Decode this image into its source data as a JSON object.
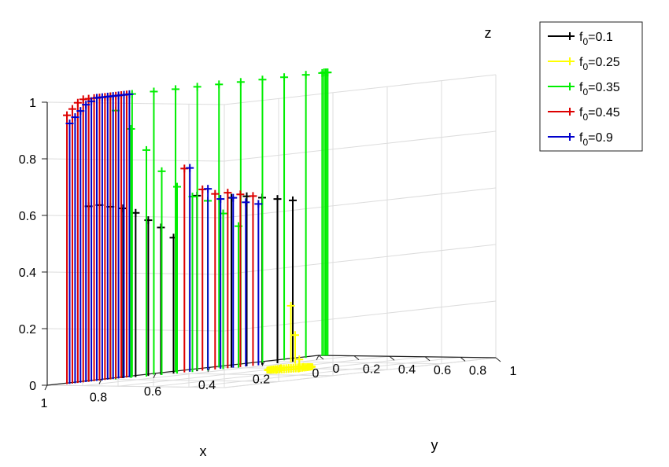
{
  "chart_data": {
    "type": "line",
    "kind": "3d-stem-plot",
    "title": "",
    "axes": {
      "x": {
        "label": "x",
        "ticks": [
          "1",
          "0.8",
          "0.6",
          "0.4",
          "0.2",
          "0"
        ]
      },
      "y": {
        "label": "y",
        "ticks": [
          "1",
          "0.8",
          "0.6",
          "0.4",
          "0.2",
          "0"
        ]
      },
      "z": {
        "label": "z",
        "ticks": [
          "0",
          "0.2",
          "0.4",
          "0.6",
          "0.8",
          "1"
        ]
      }
    },
    "xlim": [
      0,
      1
    ],
    "ylim": [
      0,
      1
    ],
    "zlim": [
      0,
      1
    ],
    "grid": true,
    "legend_position": "top-right",
    "marker": "+",
    "legend": {
      "entries": [
        {
          "prefix": "f",
          "subscript": "0",
          "suffix": "=0.1"
        },
        {
          "prefix": "f",
          "subscript": "0",
          "suffix": "=0.25"
        },
        {
          "prefix": "f",
          "subscript": "0",
          "suffix": "=0.35"
        },
        {
          "prefix": "f",
          "subscript": "0",
          "suffix": "=0.45"
        },
        {
          "prefix": "f",
          "subscript": "0",
          "suffix": "=0.9"
        }
      ]
    },
    "series": [
      {
        "name": "f0=0.1",
        "color": "#000000",
        "points": [
          [
            0.88,
            0.05,
            0.62
          ],
          [
            0.84,
            0.05,
            0.62
          ],
          [
            0.8,
            0.05,
            0.61
          ],
          [
            0.76,
            0.06,
            0.6
          ],
          [
            0.72,
            0.07,
            0.58
          ],
          [
            0.68,
            0.08,
            0.55
          ],
          [
            0.64,
            0.09,
            0.52
          ],
          [
            0.6,
            0.1,
            0.48
          ],
          [
            0.52,
            0.11,
            0.62
          ],
          [
            0.4,
            0.12,
            0.6
          ],
          [
            0.35,
            0.13,
            0.6
          ],
          [
            0.3,
            0.14,
            0.59
          ],
          [
            0.25,
            0.15,
            0.58
          ],
          [
            0.2,
            0.16,
            0.57
          ]
        ]
      },
      {
        "name": "f0=0.25",
        "color": "#ffff00",
        "points": [
          [
            0.45,
            0.45,
            0.0
          ],
          [
            0.4,
            0.4,
            0.0
          ],
          [
            0.35,
            0.45,
            0.0
          ],
          [
            0.4,
            0.5,
            0.0
          ],
          [
            0.3,
            0.35,
            0.02
          ],
          [
            0.25,
            0.25,
            0.1
          ],
          [
            0.22,
            0.18,
            0.2
          ]
        ]
      },
      {
        "name": "f0=0.35",
        "color": "#00ee00",
        "points": [
          [
            0.8,
            0.05,
            1.0
          ],
          [
            0.72,
            0.05,
            1.0
          ],
          [
            0.64,
            0.05,
            1.0
          ],
          [
            0.56,
            0.05,
            1.0
          ],
          [
            0.48,
            0.05,
            1.0
          ],
          [
            0.4,
            0.05,
            1.0
          ],
          [
            0.32,
            0.05,
            1.0
          ],
          [
            0.24,
            0.05,
            1.0
          ],
          [
            0.16,
            0.05,
            1.0
          ],
          [
            0.08,
            0.05,
            1.0
          ],
          [
            0.02,
            0.05,
            1.0
          ],
          [
            0.0,
            0.05,
            1.0
          ],
          [
            0.0,
            0.05,
            1.0
          ],
          [
            0.0,
            0.04,
            1.0
          ],
          [
            0.0,
            0.03,
            1.0
          ],
          [
            0.8,
            0.08,
            0.95
          ],
          [
            0.75,
            0.09,
            0.88
          ],
          [
            0.7,
            0.1,
            0.8
          ],
          [
            0.65,
            0.11,
            0.72
          ],
          [
            0.6,
            0.12,
            0.66
          ],
          [
            0.55,
            0.13,
            0.62
          ],
          [
            0.5,
            0.14,
            0.6
          ],
          [
            0.45,
            0.15,
            0.55
          ],
          [
            0.4,
            0.16,
            0.5
          ]
        ]
      },
      {
        "name": "f0=0.45",
        "color": "#dd0000",
        "points": [
          [
            0.96,
            0.05,
            0.95
          ],
          [
            0.94,
            0.05,
            0.97
          ],
          [
            0.92,
            0.05,
            0.99
          ],
          [
            0.9,
            0.05,
            1.0
          ],
          [
            0.88,
            0.05,
            1.0
          ],
          [
            0.86,
            0.05,
            1.0
          ],
          [
            0.84,
            0.05,
            1.0
          ],
          [
            0.82,
            0.05,
            1.0
          ],
          [
            0.8,
            0.05,
            1.0
          ],
          [
            0.78,
            0.05,
            1.0
          ],
          [
            0.76,
            0.05,
            1.0
          ],
          [
            0.74,
            0.05,
            1.0
          ],
          [
            0.56,
            0.1,
            0.72
          ],
          [
            0.5,
            0.11,
            0.64
          ],
          [
            0.46,
            0.12,
            0.62
          ],
          [
            0.42,
            0.13,
            0.62
          ],
          [
            0.38,
            0.14,
            0.61
          ],
          [
            0.34,
            0.15,
            0.6
          ]
        ]
      },
      {
        "name": "f0=0.9",
        "color": "#0000cc",
        "points": [
          [
            0.95,
            0.05,
            0.92
          ],
          [
            0.93,
            0.05,
            0.94
          ],
          [
            0.91,
            0.05,
            0.96
          ],
          [
            0.89,
            0.05,
            0.98
          ],
          [
            0.87,
            0.05,
            0.99
          ],
          [
            0.85,
            0.05,
            1.0
          ],
          [
            0.83,
            0.05,
            1.0
          ],
          [
            0.81,
            0.05,
            1.0
          ],
          [
            0.79,
            0.05,
            1.0
          ],
          [
            0.77,
            0.05,
            1.0
          ],
          [
            0.75,
            0.05,
            1.0
          ],
          [
            0.73,
            0.05,
            1.0
          ],
          [
            0.54,
            0.1,
            0.72
          ],
          [
            0.48,
            0.11,
            0.64
          ],
          [
            0.44,
            0.12,
            0.6
          ],
          [
            0.4,
            0.13,
            0.6
          ],
          [
            0.36,
            0.14,
            0.58
          ],
          [
            0.32,
            0.15,
            0.57
          ]
        ]
      }
    ]
  }
}
